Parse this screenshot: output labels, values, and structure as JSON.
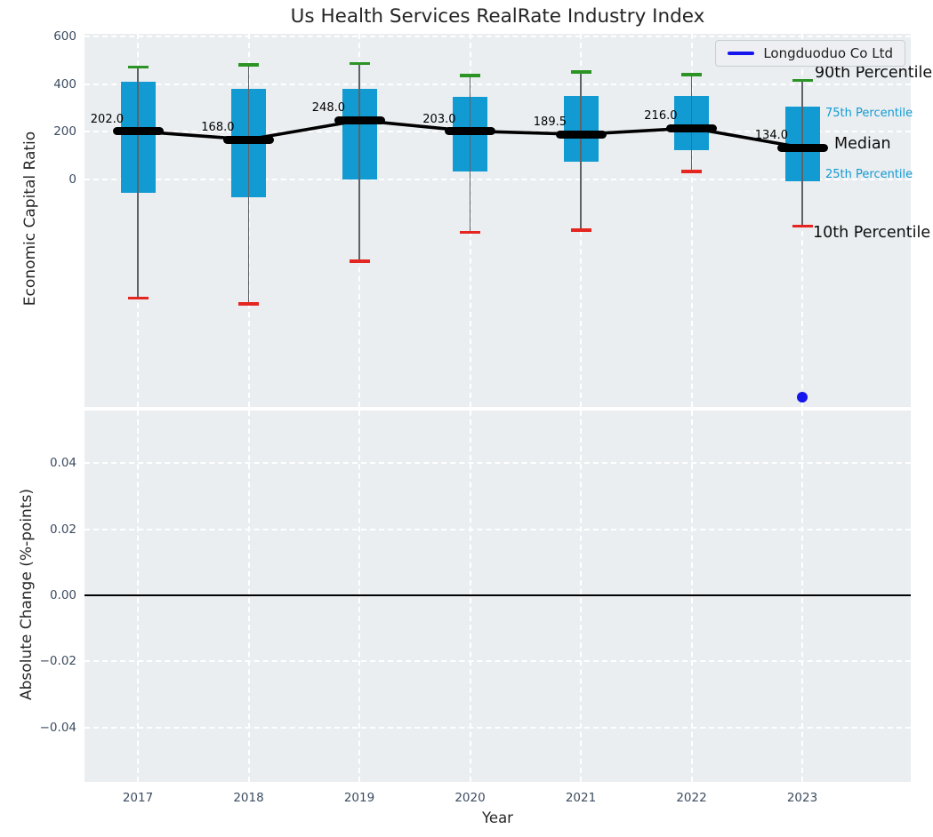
{
  "chart_data": [
    {
      "type": "boxplot",
      "title": "Us Health Services RealRate Industry Index",
      "xlabel": "Year",
      "ylabel": "Economic Capital Ratio",
      "categories": [
        "2017",
        "2018",
        "2019",
        "2020",
        "2021",
        "2022",
        "2023"
      ],
      "series": [
        {
          "name": "90th Percentile",
          "values": [
            470,
            480,
            485,
            435,
            450,
            440,
            415
          ]
        },
        {
          "name": "75th Percentile",
          "values": [
            410,
            380,
            380,
            345,
            350,
            350,
            305
          ]
        },
        {
          "name": "Median",
          "values": [
            202.0,
            168.0,
            248.0,
            203.0,
            189.5,
            216.0,
            134.0
          ]
        },
        {
          "name": "25th Percentile",
          "values": [
            -55,
            -75,
            0,
            35,
            75,
            125,
            -5
          ]
        },
        {
          "name": "10th Percentile",
          "values": [
            -495,
            -520,
            -340,
            -220,
            -210,
            35,
            -195
          ]
        }
      ],
      "median_labels": [
        "202.0",
        "168.0",
        "248.0",
        "203.0",
        "189.5",
        "216.0",
        "134.0"
      ],
      "company_point": {
        "name": "Longduoduo Co Ltd",
        "category": "2023",
        "value": -910
      },
      "legend": {
        "position": "upper right",
        "entries": [
          "Longduoduo Co Ltd"
        ]
      },
      "annotations": [
        "90th Percentile",
        "75th Percentile",
        "Median",
        "25th Percentile",
        "10th Percentile"
      ],
      "ytick_labels": [
        "600",
        "400",
        "200",
        "0"
      ],
      "ytick_values": [
        600,
        400,
        200,
        0
      ],
      "ylim": [
        -950,
        610
      ],
      "grid": true,
      "colors": {
        "box": "#129bd2",
        "p90_cap": "#2c9425",
        "p10_cap": "#e52620",
        "median": "#000000",
        "whisker": "#5f6368",
        "company": "#1515ee",
        "annotation_blue": "#129bd2"
      }
    },
    {
      "type": "line",
      "ylabel": "Absolute Change (%-points)",
      "ytick_labels": [
        "0.04",
        "0.02",
        "0.00",
        "−0.02",
        "−0.04"
      ],
      "ytick_values": [
        0.04,
        0.02,
        0.0,
        -0.02,
        -0.04
      ],
      "ylim": [
        -0.0565,
        0.056
      ],
      "zero_line": 0.0,
      "grid": true,
      "values": []
    }
  ]
}
